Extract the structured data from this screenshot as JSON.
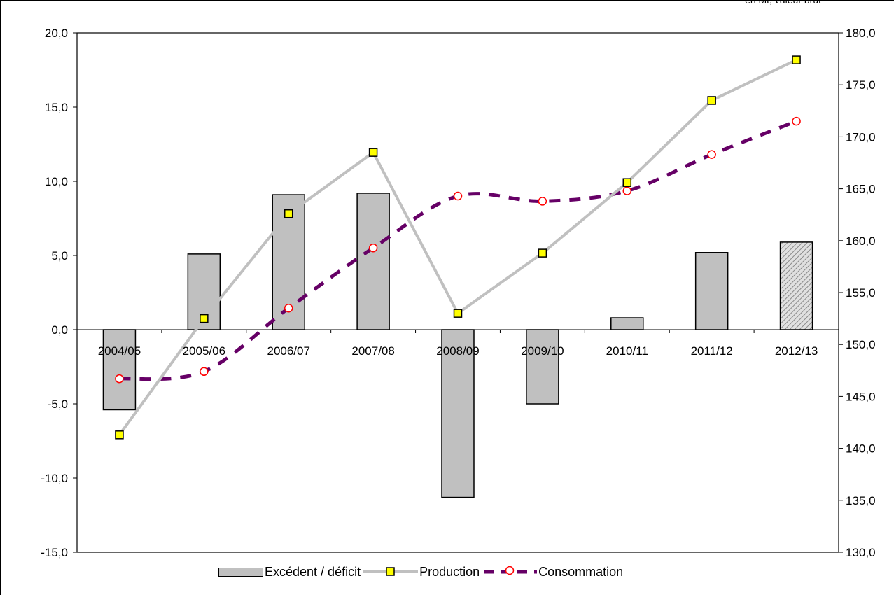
{
  "unit_note": "en Mt, valeur brut",
  "colors": {
    "bar_fill": "#c0c0c0",
    "bar_border": "#000000",
    "production_line": "#c0c0c0",
    "production_marker": "#ffff00",
    "consumption_line": "#660066",
    "consumption_marker": "#ff0000"
  },
  "chart_data": {
    "type": "bar",
    "title": "",
    "categories": [
      "2004/05",
      "2005/06",
      "2006/07",
      "2007/08",
      "2008/09",
      "2009/10",
      "2010/11",
      "2011/12",
      "2012/13"
    ],
    "left_axis": {
      "min": -15,
      "max": 20,
      "step": 5,
      "tick_labels": [
        "-15,0",
        "-10,0",
        "-5,0",
        "0,0",
        "5,0",
        "10,0",
        "15,0",
        "20,0"
      ]
    },
    "right_axis": {
      "min": 130,
      "max": 180,
      "step": 5,
      "tick_labels": [
        "130,0",
        "135,0",
        "140,0",
        "145,0",
        "150,0",
        "155,0",
        "160,0",
        "165,0",
        "170,0",
        "175,0",
        "180,0"
      ]
    },
    "series": [
      {
        "name": "Excédent / déficit",
        "type": "bar",
        "axis": "left",
        "values": [
          -5.4,
          5.1,
          9.1,
          9.2,
          -11.3,
          -5.0,
          0.8,
          5.2,
          5.9
        ],
        "hatched_last": true
      },
      {
        "name": "Production",
        "type": "line",
        "axis": "right",
        "style": "solid",
        "values": [
          141.3,
          152.5,
          162.6,
          168.5,
          153.0,
          158.8,
          165.6,
          173.5,
          177.4
        ]
      },
      {
        "name": "Consommation",
        "type": "line",
        "axis": "right",
        "style": "dashed",
        "values": [
          146.7,
          147.4,
          153.5,
          159.3,
          164.3,
          163.8,
          164.8,
          168.3,
          171.5
        ]
      }
    ],
    "legend_position": "bottom",
    "grid": false
  }
}
